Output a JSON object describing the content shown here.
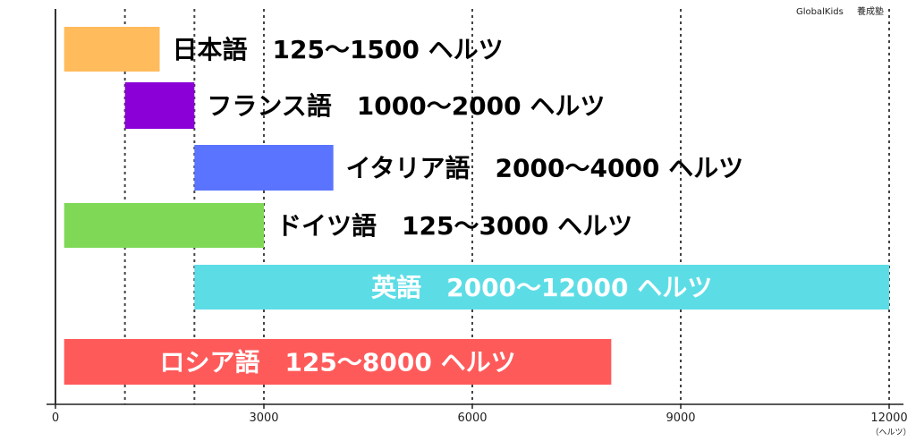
{
  "credit": {
    "brand": "GlobalKids",
    "school": "養成塾"
  },
  "chart_data": {
    "type": "bar",
    "orientation": "horizontal-range",
    "title": "",
    "xlabel": "",
    "xunit": "（ヘルツ）",
    "xlim": [
      0,
      12000
    ],
    "xticks": [
      0,
      3000,
      6000,
      9000,
      12000
    ],
    "grid": {
      "x_dashed": true,
      "dashed_at": [
        1000,
        2000,
        3000,
        6000,
        9000,
        12000
      ]
    },
    "bars": [
      {
        "label": "日本語　125～1500 ヘルツ",
        "start": 125,
        "end": 1500,
        "color": "#FFBB5C",
        "text_color": "#000000",
        "label_position": "right"
      },
      {
        "label": "フランス語　1000～2000 ヘルツ",
        "start": 1000,
        "end": 2000,
        "color": "#8B00D6",
        "text_color": "#000000",
        "label_position": "right"
      },
      {
        "label": "イタリア語　2000～4000 ヘルツ",
        "start": 2000,
        "end": 4000,
        "color": "#5A74FF",
        "text_color": "#000000",
        "label_position": "right"
      },
      {
        "label": "ドイツ語　125～3000 ヘルツ",
        "start": 125,
        "end": 3000,
        "color": "#7FD957",
        "text_color": "#000000",
        "label_position": "right"
      },
      {
        "label": "英語　2000～12000 ヘルツ",
        "start": 2000,
        "end": 12000,
        "color": "#5CDDE6",
        "text_color": "#FFFFFF",
        "label_position": "inside"
      },
      {
        "label": "ロシア語　125～8000 ヘルツ",
        "start": 125,
        "end": 8000,
        "color": "#FF5A5A",
        "text_color": "#FFFFFF",
        "label_position": "inside"
      }
    ]
  }
}
